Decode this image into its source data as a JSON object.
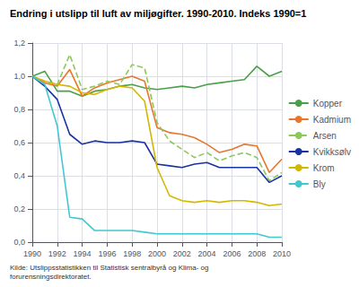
{
  "chart_data": {
    "type": "line",
    "title": "Endring i utslipp til luft av miljøgifter. 1990-2010. Indeks 1990=1",
    "annotations": [
      "Kilde: Utslippsstatistikken til Statistisk sentralbyrå og Klima- og forurensningsdirektoratet."
    ],
    "x": [
      1990,
      1991,
      1992,
      1993,
      1994,
      1995,
      1996,
      1997,
      1998,
      1999,
      2000,
      2001,
      2002,
      2003,
      2004,
      2005,
      2006,
      2007,
      2008,
      2009,
      2010
    ],
    "series": [
      {
        "name": "Kopper",
        "color": "#4aa048",
        "line_style": "solid",
        "values": [
          1.0,
          1.03,
          0.91,
          0.91,
          0.88,
          0.91,
          0.92,
          0.94,
          0.95,
          0.93,
          0.92,
          0.93,
          0.94,
          0.93,
          0.95,
          0.96,
          0.97,
          0.98,
          1.06,
          1.0,
          1.03
        ]
      },
      {
        "name": "Kadmium",
        "color": "#e8762c",
        "line_style": "solid",
        "values": [
          1.0,
          0.96,
          0.94,
          1.04,
          0.88,
          0.93,
          0.96,
          0.98,
          1.0,
          0.97,
          0.69,
          0.66,
          0.65,
          0.63,
          0.59,
          0.54,
          0.56,
          0.59,
          0.58,
          0.42,
          0.5
        ]
      },
      {
        "name": "Arsen",
        "color": "#8dc85a",
        "line_style": "dashed",
        "values": [
          1.0,
          0.97,
          0.95,
          1.13,
          0.92,
          0.94,
          0.97,
          0.95,
          1.07,
          1.05,
          0.72,
          0.61,
          0.56,
          0.51,
          0.54,
          0.49,
          0.52,
          0.54,
          0.51,
          0.37,
          0.42
        ]
      },
      {
        "name": "Kvikksølv",
        "color": "#1a32a0",
        "line_style": "solid",
        "values": [
          1.0,
          0.94,
          0.86,
          0.65,
          0.59,
          0.61,
          0.6,
          0.6,
          0.61,
          0.6,
          0.47,
          0.46,
          0.45,
          0.47,
          0.48,
          0.45,
          0.45,
          0.45,
          0.45,
          0.36,
          0.4
        ]
      },
      {
        "name": "Krom",
        "color": "#d4b800",
        "line_style": "solid",
        "values": [
          1.0,
          0.97,
          0.95,
          0.94,
          0.9,
          0.89,
          0.92,
          0.94,
          0.93,
          0.85,
          0.45,
          0.28,
          0.25,
          0.24,
          0.25,
          0.24,
          0.25,
          0.25,
          0.24,
          0.22,
          0.23
        ]
      },
      {
        "name": "Bly",
        "color": "#40c8d0",
        "line_style": "solid",
        "values": [
          1.0,
          0.95,
          0.7,
          0.15,
          0.14,
          0.07,
          0.07,
          0.07,
          0.07,
          0.06,
          0.05,
          0.05,
          0.05,
          0.05,
          0.05,
          0.05,
          0.05,
          0.05,
          0.05,
          0.03,
          0.03
        ]
      }
    ],
    "xlim": [
      1990,
      2010
    ],
    "xticks": [
      1990,
      1992,
      1994,
      1996,
      1998,
      2000,
      2002,
      2004,
      2006,
      2008,
      2010
    ],
    "ylim": [
      0.0,
      1.2
    ],
    "yticks": [
      {
        "value": 0.0,
        "label": "0,0"
      },
      {
        "value": 0.2,
        "label": "0,2"
      },
      {
        "value": 0.4,
        "label": "0,4"
      },
      {
        "value": 0.6,
        "label": "0,6"
      },
      {
        "value": 0.8,
        "label": "0,8"
      },
      {
        "value": 1.0,
        "label": "1,0"
      },
      {
        "value": 1.2,
        "label": "1,2"
      }
    ],
    "grid": true,
    "legend": "right"
  }
}
